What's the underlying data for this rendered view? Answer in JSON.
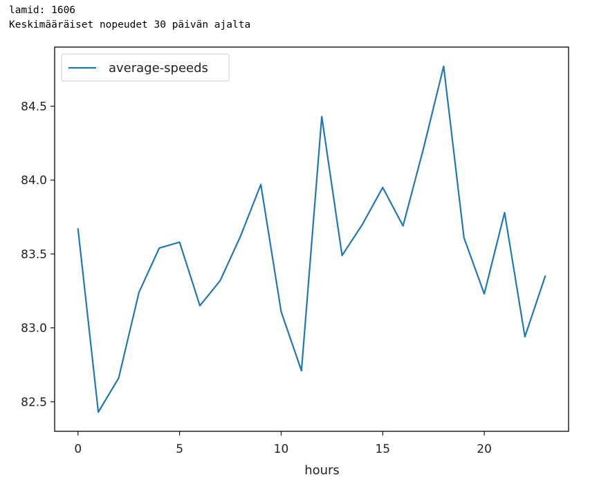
{
  "output": {
    "line1": "lamid: 1606",
    "line2": "Keskimääräiset nopeudet 30 päivän ajalta"
  },
  "chart_data": {
    "type": "line",
    "title": "",
    "xlabel": "hours",
    "ylabel": "",
    "xlim": [
      -1.15,
      24.15
    ],
    "ylim": [
      82.3,
      84.9
    ],
    "xticks": [
      0,
      5,
      10,
      15,
      20
    ],
    "xtick_labels": [
      "0",
      "5",
      "10",
      "15",
      "20"
    ],
    "yticks": [
      82.5,
      83.0,
      83.5,
      84.0,
      84.5
    ],
    "ytick_labels": [
      "82.5",
      "83.0",
      "83.5",
      "84.0",
      "84.5"
    ],
    "grid": false,
    "legend_position": "upper left",
    "series": [
      {
        "name": "average-speeds",
        "color": "#1f77b4",
        "x": [
          0,
          1,
          2,
          3,
          4,
          5,
          6,
          7,
          8,
          9,
          10,
          11,
          12,
          13,
          14,
          15,
          16,
          17,
          18,
          19,
          20,
          21,
          22,
          23
        ],
        "y": [
          83.67,
          82.43,
          82.66,
          83.24,
          83.54,
          83.58,
          83.15,
          83.32,
          83.62,
          83.97,
          83.11,
          82.71,
          84.43,
          83.49,
          83.7,
          83.95,
          83.69,
          84.21,
          84.77,
          83.61,
          83.23,
          83.78,
          82.94,
          83.35
        ]
      }
    ]
  }
}
